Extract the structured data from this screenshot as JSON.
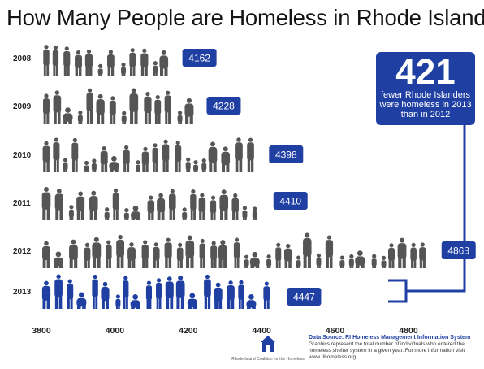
{
  "title": "How Many People are Homeless in Rhode Island?",
  "callout": {
    "number": "421",
    "text": "fewer Rhode Islanders were homeless in 2013 than in 2012"
  },
  "source": {
    "heading": "Data Source: RI Homeless Management Information System",
    "note": "Graphics represent the total number of individuals who entered the homeless shelter system in a given year. For more information visit www.rihomeless.org"
  },
  "logo": {
    "org": "Rhode Island Coalition for the Homeless",
    "icon": "house-icon"
  },
  "colors": {
    "gray": "#555555",
    "blue": "#1f3fa3",
    "label_box": "#1f3fa3"
  },
  "chart_data": {
    "type": "bar",
    "orientation": "horizontal",
    "categories": [
      "2008",
      "2009",
      "2010",
      "2011",
      "2012",
      "2013"
    ],
    "values": [
      4162,
      4228,
      4398,
      4410,
      4868,
      4447
    ],
    "data_labels": [
      "4162",
      "4228",
      "4398",
      "4410",
      "4868",
      "4447"
    ],
    "highlight": "2013",
    "xlim": [
      3800,
      4800
    ],
    "xticks": [
      "3800",
      "4000",
      "4200",
      "4400",
      "4600",
      "4800"
    ],
    "grid": false,
    "legend": "none"
  }
}
